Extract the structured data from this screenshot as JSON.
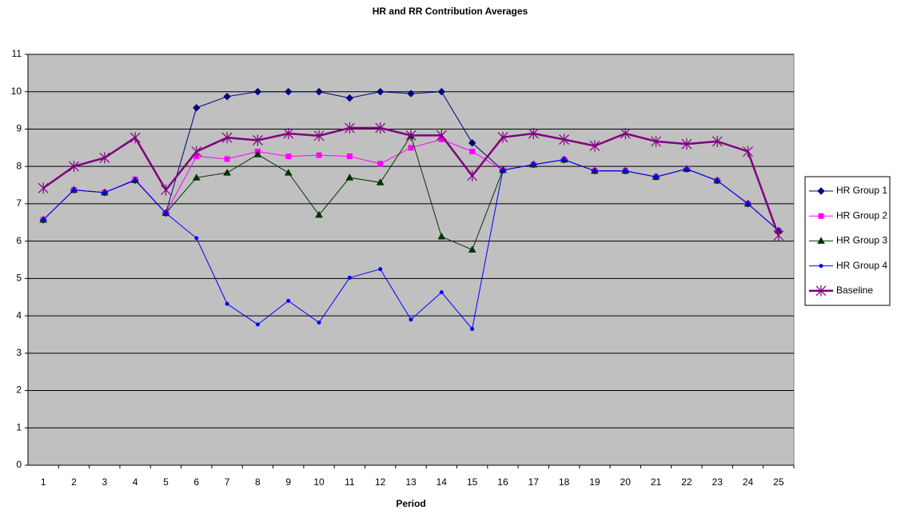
{
  "chart_data": {
    "type": "line",
    "title": "HR and RR Contribution Averages",
    "x_label": "Period",
    "categories": [
      "1",
      "2",
      "3",
      "4",
      "5",
      "6",
      "7",
      "8",
      "9",
      "10",
      "11",
      "12",
      "13",
      "14",
      "15",
      "16",
      "17",
      "18",
      "19",
      "20",
      "21",
      "22",
      "23",
      "24",
      "25"
    ],
    "series": [
      {
        "name": "HR Group 1",
        "color": "#000080",
        "marker": "diamond",
        "values": [
          6.57,
          7.37,
          7.3,
          7.63,
          6.75,
          9.57,
          9.87,
          10.0,
          10.0,
          10.0,
          9.83,
          10.0,
          9.95,
          10.0,
          8.63,
          7.9,
          8.05,
          8.18,
          7.88,
          7.88,
          7.72,
          7.93,
          7.62,
          7.0,
          6.28
        ]
      },
      {
        "name": "HR Group 2",
        "color": "#ff00ff",
        "marker": "square",
        "values": [
          6.57,
          7.37,
          7.3,
          7.65,
          6.75,
          8.27,
          8.2,
          8.4,
          8.27,
          8.3,
          8.27,
          8.07,
          8.5,
          8.72,
          8.4,
          7.9,
          8.05,
          8.18,
          7.88,
          7.88,
          7.72,
          7.93,
          7.62,
          7.0,
          6.28
        ]
      },
      {
        "name": "HR Group 3",
        "color": "#003300",
        "marker": "triangle",
        "values": [
          6.57,
          7.37,
          7.3,
          7.63,
          6.75,
          7.7,
          7.83,
          8.32,
          7.83,
          6.7,
          7.7,
          7.57,
          8.82,
          6.12,
          5.77,
          7.9,
          8.05,
          8.18,
          7.88,
          7.88,
          7.72,
          7.93,
          7.62,
          7.0,
          6.28
        ]
      },
      {
        "name": "HR Group 4",
        "color": "#0000ff",
        "marker": "circle",
        "values": [
          6.57,
          7.37,
          7.3,
          7.63,
          6.75,
          6.08,
          4.32,
          3.77,
          4.4,
          3.82,
          5.02,
          5.25,
          3.9,
          4.63,
          3.65,
          7.9,
          8.05,
          8.18,
          7.88,
          7.88,
          7.72,
          7.93,
          7.62,
          7.0,
          6.28
        ]
      },
      {
        "name": "Baseline",
        "color": "#800080",
        "marker": "asterisk",
        "values": [
          7.42,
          8.0,
          8.23,
          8.77,
          7.37,
          8.4,
          8.77,
          8.7,
          8.88,
          8.82,
          9.03,
          9.03,
          8.83,
          8.83,
          7.75,
          8.78,
          8.88,
          8.72,
          8.55,
          8.88,
          8.67,
          8.6,
          8.67,
          8.4,
          6.15
        ]
      }
    ],
    "ylim": [
      0,
      11
    ],
    "yticks": [
      0,
      1,
      2,
      3,
      4,
      5,
      6,
      7,
      8,
      9,
      10,
      11
    ],
    "grid": true,
    "legend": "right",
    "plot_background": "#c0c0c0"
  }
}
